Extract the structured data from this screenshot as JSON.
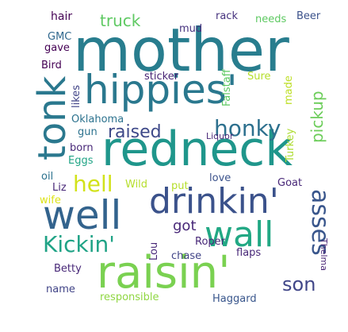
{
  "words": [
    {
      "text": "mother",
      "color": "#287d8e",
      "size": 1.0
    },
    {
      "text": "redneck",
      "color": "#1f968b",
      "size": 0.82
    },
    {
      "text": "hippies'",
      "color": "#2a788e",
      "size": 0.62
    },
    {
      "text": "raisin'",
      "color": "#7ad151",
      "size": 0.78
    },
    {
      "text": "well",
      "color": "#33638d",
      "size": 0.62
    },
    {
      "text": "drinkin'",
      "color": "#3b528b",
      "size": 0.58
    },
    {
      "text": "tonk",
      "color": "#2a788e",
      "size": 0.55
    },
    {
      "text": "wall",
      "color": "#22a884",
      "size": 0.52
    },
    {
      "text": "honky",
      "color": "#2d708e",
      "size": 0.35
    },
    {
      "text": "Kickin'",
      "color": "#20a386",
      "size": 0.35
    },
    {
      "text": "asses",
      "color": "#39568c",
      "size": 0.38
    },
    {
      "text": "hell",
      "color": "#d2e21b",
      "size": 0.32
    },
    {
      "text": "son",
      "color": "#404688",
      "size": 0.28
    },
    {
      "text": "raised",
      "color": "#3e4989",
      "size": 0.26
    },
    {
      "text": "pickup",
      "color": "#6ccd5a",
      "size": 0.22
    },
    {
      "text": "truck",
      "color": "#5ec962",
      "size": 0.22
    },
    {
      "text": "got",
      "color": "#482878",
      "size": 0.2
    },
    {
      "text": "hair",
      "color": "#440154",
      "size": 0.13
    },
    {
      "text": "GMC",
      "color": "#31688e",
      "size": 0.12
    },
    {
      "text": "gave",
      "color": "#440154",
      "size": 0.12
    },
    {
      "text": "Bird",
      "color": "#440154",
      "size": 0.12
    },
    {
      "text": "mud",
      "color": "#46327e",
      "size": 0.12
    },
    {
      "text": "rack",
      "color": "#46327e",
      "size": 0.12
    },
    {
      "text": "needs",
      "color": "#5ec962",
      "size": 0.12
    },
    {
      "text": "Beer",
      "color": "#3b528b",
      "size": 0.12
    },
    {
      "text": "Falstaff",
      "color": "#5ec962",
      "size": 0.12
    },
    {
      "text": "likes",
      "color": "#414487",
      "size": 0.12
    },
    {
      "text": "sticker",
      "color": "#482475",
      "size": 0.12
    },
    {
      "text": "Sure",
      "color": "#b5de2b",
      "size": 0.12
    },
    {
      "text": "made",
      "color": "#bddf26",
      "size": 0.12
    },
    {
      "text": "Oklahoma",
      "color": "#2c728e",
      "size": 0.12
    },
    {
      "text": "gun",
      "color": "#2c728e",
      "size": 0.12
    },
    {
      "text": "Liquor",
      "color": "#482878",
      "size": 0.11
    },
    {
      "text": "Turkey",
      "color": "#addc30",
      "size": 0.12
    },
    {
      "text": "born",
      "color": "#482878",
      "size": 0.12
    },
    {
      "text": "Eggs",
      "color": "#20a486",
      "size": 0.12
    },
    {
      "text": "oil",
      "color": "#2c728e",
      "size": 0.12
    },
    {
      "text": "Wild",
      "color": "#b5de2b",
      "size": 0.12
    },
    {
      "text": "put",
      "color": "#b5de2b",
      "size": 0.12
    },
    {
      "text": "love",
      "color": "#3b528b",
      "size": 0.12
    },
    {
      "text": "Goat",
      "color": "#482878",
      "size": 0.12
    },
    {
      "text": "wife",
      "color": "#dde318",
      "size": 0.12
    },
    {
      "text": "Liz",
      "color": "#482878",
      "size": 0.12
    },
    {
      "text": "Roper",
      "color": "#482878",
      "size": 0.12
    },
    {
      "text": "Lou",
      "color": "#482878",
      "size": 0.12
    },
    {
      "text": "chase",
      "color": "#414487",
      "size": 0.12
    },
    {
      "text": "flaps",
      "color": "#482878",
      "size": 0.12
    },
    {
      "text": "Thelma",
      "color": "#482475",
      "size": 0.11
    },
    {
      "text": "Betty",
      "color": "#482878",
      "size": 0.12
    },
    {
      "text": "name",
      "color": "#414487",
      "size": 0.12
    },
    {
      "text": "responsible",
      "color": "#90d743",
      "size": 0.12
    },
    {
      "text": "Haggard",
      "color": "#39568c",
      "size": 0.12
    }
  ]
}
